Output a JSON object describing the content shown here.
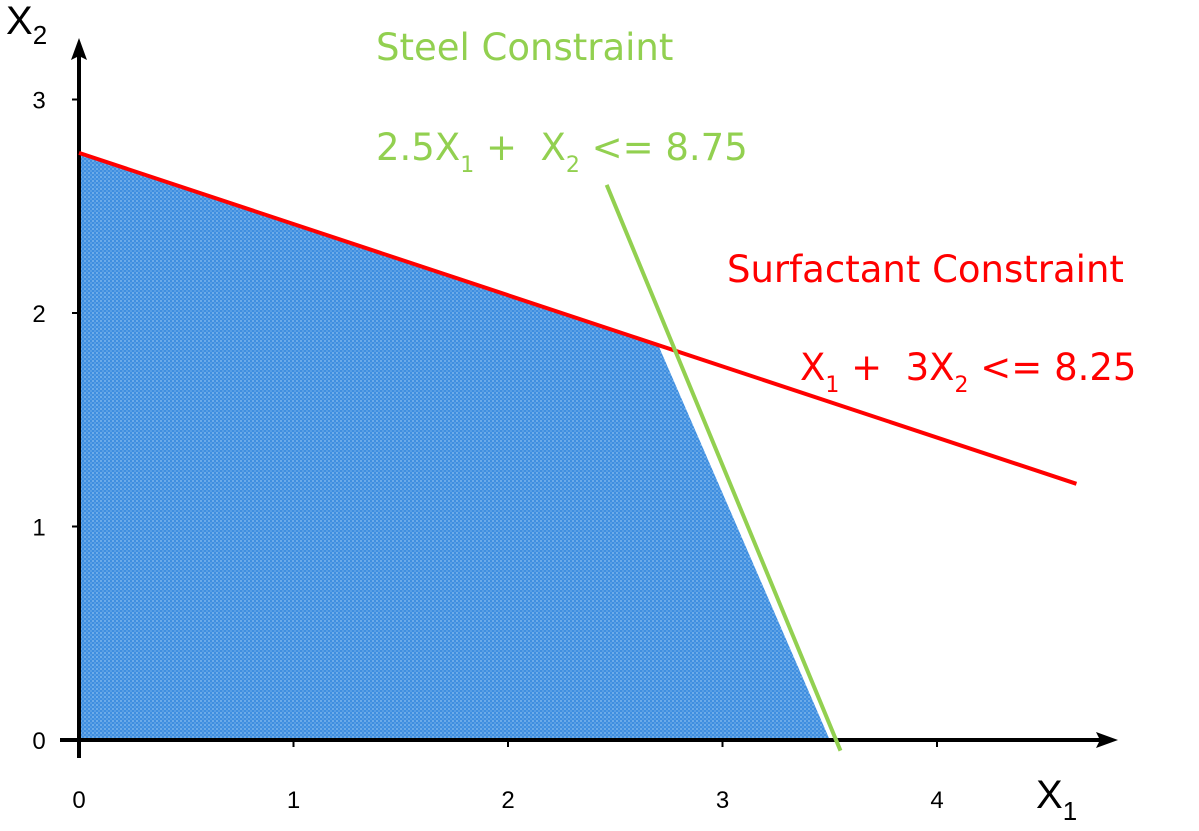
{
  "chart_data": {
    "type": "line",
    "title": "",
    "xlabel": {
      "main": "X",
      "sub": "1"
    },
    "ylabel": {
      "main": "X",
      "sub": "2"
    },
    "xlim": [
      0,
      4.8
    ],
    "ylim": [
      0,
      3.3
    ],
    "xticks": [
      "0",
      "1",
      "2",
      "3",
      "4"
    ],
    "yticks": [
      "0",
      "1",
      "2",
      "3"
    ],
    "grid": false,
    "colors": {
      "steel": "#92d050",
      "surfactant": "#ff0000",
      "region": "#4a90d9",
      "axis": "#000000"
    },
    "series": [
      {
        "name": "Surfactant Constraint",
        "expression": "X1 + 3X2 <= 8.25",
        "x": [
          0,
          4.65
        ],
        "y": [
          2.75,
          1.2
        ]
      },
      {
        "name": "Steel Constraint",
        "expression": "2.5X1 + X2 <= 8.75",
        "x": [
          2.46,
          3.55
        ],
        "y": [
          2.6,
          -0.05
        ]
      }
    ],
    "feasible_region": {
      "x": [
        0,
        0,
        2.7,
        3.5
      ],
      "y": [
        0,
        2.75,
        1.85,
        0
      ]
    },
    "annotations": {
      "steel_title": "Steel Constraint",
      "steel_expr": {
        "p1": "2.5X",
        "s1": "1",
        "p2": " +  X",
        "s2": "2",
        "p3": " <= 8.75"
      },
      "surf_title": "Surfactant Constraint",
      "surf_expr": {
        "p1": "X",
        "s1": "1",
        "p2": " +  3X",
        "s2": "2",
        "p3": " <= 8.25"
      }
    }
  }
}
